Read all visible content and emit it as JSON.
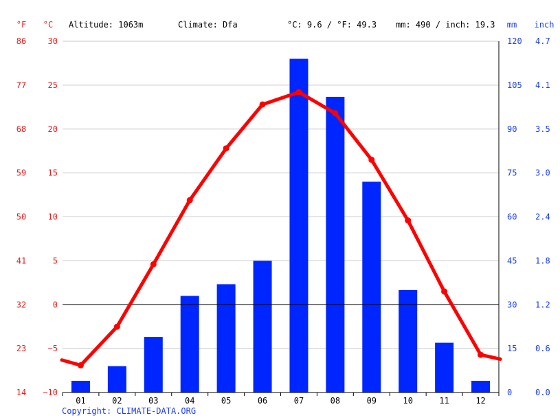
{
  "header": {
    "unit_f": "°F",
    "unit_c": "°C",
    "altitude": "Altitude: 1063m",
    "climate": "Climate: Dfa",
    "avg_temp": "°C: 9.6 / °F: 49.3",
    "precip_total": "mm: 490 / inch: 19.3",
    "unit_mm": "mm",
    "unit_inch": "inch"
  },
  "copyright": "Copyright: CLIMATE-DATA.ORG",
  "colors": {
    "temperature": "#ff0000",
    "precipitation": "#0026ff",
    "grid": "#c8c8c8",
    "zero_line": "#000000",
    "left_axis_text": "#e8201f",
    "right_axis_text": "#1a3ee8"
  },
  "chart_data": {
    "type": "bar",
    "categories": [
      "01",
      "02",
      "03",
      "04",
      "05",
      "06",
      "07",
      "08",
      "09",
      "10",
      "11",
      "12"
    ],
    "series": [
      {
        "type": "bar",
        "axis": "right",
        "unit": "mm",
        "values": [
          4,
          9,
          19,
          33,
          37,
          45,
          114,
          101,
          72,
          35,
          17,
          4
        ]
      },
      {
        "type": "line",
        "axis": "left",
        "unit": "°C",
        "values": [
          -6.9,
          -2.5,
          4.6,
          11.9,
          17.8,
          22.8,
          24.2,
          21.8,
          16.5,
          9.6,
          1.5,
          -5.7
        ],
        "edge_values": [
          -6.3,
          -6.2
        ]
      }
    ],
    "y_left_c_ticks": [
      "30",
      "25",
      "20",
      "15",
      "10",
      "5",
      "0",
      "−5",
      "−10"
    ],
    "y_left_f_ticks": [
      "86",
      "77",
      "68",
      "59",
      "50",
      "41",
      "32",
      "23",
      "14"
    ],
    "y_right_mm_ticks": [
      "120",
      "105",
      "90",
      "75",
      "60",
      "45",
      "30",
      "15",
      "0"
    ],
    "y_right_inch_ticks": [
      "4.7",
      "4.1",
      "3.5",
      "3.0",
      "2.4",
      "1.8",
      "1.2",
      "0.6",
      "0.0"
    ],
    "ylim_c": [
      -10,
      30
    ],
    "ylim_mm": [
      0,
      120
    ],
    "grid": true
  }
}
